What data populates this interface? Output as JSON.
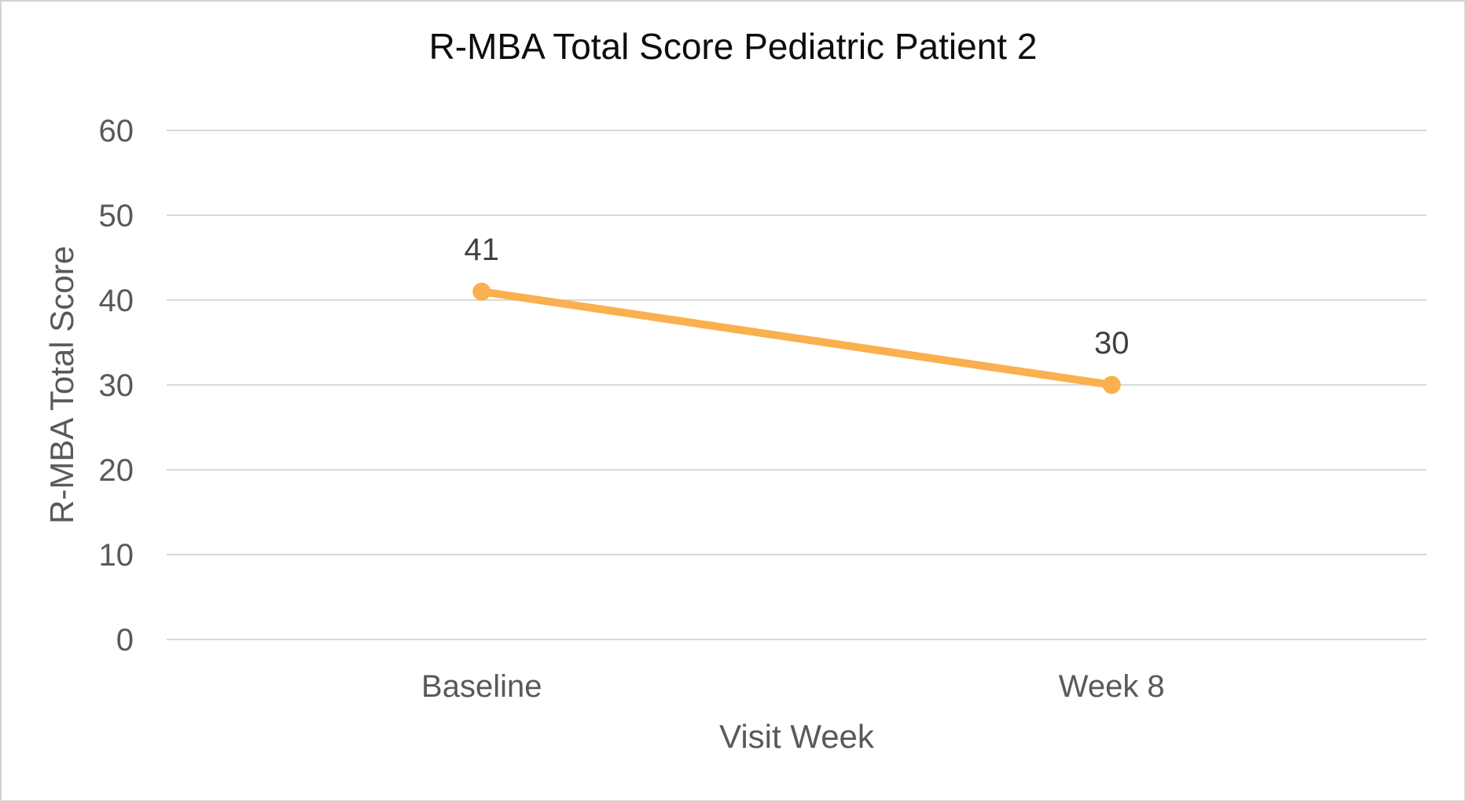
{
  "chart_data": {
    "type": "line",
    "title": "R-MBA Total Score Pediatric Patient 2",
    "xlabel": "Visit Week",
    "ylabel": "R-MBA Total Score",
    "categories": [
      "Baseline",
      "Week 8"
    ],
    "series": [
      {
        "name": "R-MBA Total Score",
        "values": [
          41,
          30
        ]
      }
    ],
    "data_labels": [
      "41",
      "30"
    ],
    "ylim": [
      0,
      60
    ],
    "yticks": [
      0,
      10,
      20,
      30,
      40,
      50,
      60
    ],
    "grid": true,
    "legend_position": "none",
    "colors": {
      "line": "#FAB04E",
      "marker": "#FAB04E",
      "gridline": "#D9D9D9",
      "axis_line": "#D9D9D9",
      "tick_text": "#595959",
      "data_label_text": "#404040",
      "title_text": "#0D0D0D",
      "frame_border": "#D2D2D2"
    }
  }
}
